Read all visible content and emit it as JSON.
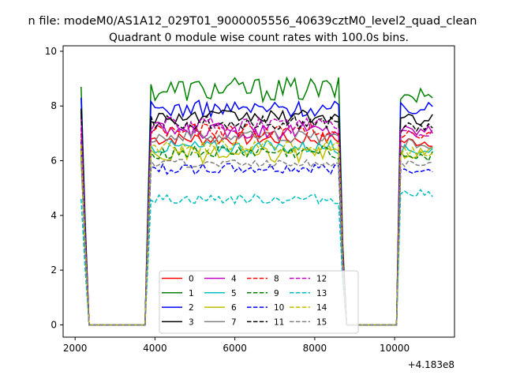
{
  "chart_data": {
    "type": "line",
    "suptitle": "n file: modeM0/AS1A12_029T01_9000005556_40639cztM0_level2_quad_clean",
    "title": "Quadrant 0 module wise count rates with 100.0s bins.",
    "xlabel": "",
    "ylabel": "",
    "xlim": [
      1700,
      11500
    ],
    "ylim": [
      -0.45,
      10.2
    ],
    "xticks": [
      2000,
      4000,
      6000,
      8000,
      10000
    ],
    "xtick_labels": [
      "2000",
      "4000",
      "6000",
      "8000",
      "10000"
    ],
    "yticks": [
      0,
      2,
      4,
      6,
      8,
      10
    ],
    "ytick_labels": [
      "0",
      "2",
      "4",
      "6",
      "8",
      "10"
    ],
    "offset_text": "+4.183e8",
    "segments": [
      [
        2150,
        2350
      ],
      [
        2350,
        3750
      ],
      [
        3750,
        8700
      ],
      [
        8700,
        10050
      ],
      [
        10050,
        11000
      ]
    ],
    "series": [
      {
        "name": "0",
        "color": "#ff0000",
        "dash": "solid",
        "start": 6.6,
        "level": 6.8,
        "noise": 0.25,
        "tail": 6.7
      },
      {
        "name": "1",
        "color": "#008000",
        "dash": "solid",
        "start": 8.7,
        "level": 8.6,
        "noise": 0.45,
        "tail": 8.4
      },
      {
        "name": "2",
        "color": "#0000ff",
        "dash": "solid",
        "start": 8.3,
        "level": 7.9,
        "noise": 0.3,
        "tail": 7.9
      },
      {
        "name": "3",
        "color": "#000000",
        "dash": "solid",
        "start": 7.8,
        "level": 7.6,
        "noise": 0.25,
        "tail": 7.5
      },
      {
        "name": "4",
        "color": "#bf00bf",
        "dash": "solid",
        "start": 7.6,
        "level": 7.1,
        "noise": 0.3,
        "tail": 7.1
      },
      {
        "name": "5",
        "color": "#00bfbf",
        "dash": "solid",
        "start": 6.2,
        "level": 6.5,
        "noise": 0.25,
        "tail": 6.4
      },
      {
        "name": "6",
        "color": "#bfbf00",
        "dash": "solid",
        "start": 6.3,
        "level": 6.2,
        "noise": 0.3,
        "tail": 6.3
      },
      {
        "name": "7",
        "color": "#808080",
        "dash": "solid",
        "start": 6.8,
        "level": 6.9,
        "noise": 0.25,
        "tail": 6.6
      },
      {
        "name": "8",
        "color": "#ff0000",
        "dash": "dashed",
        "start": 7.0,
        "level": 7.1,
        "noise": 0.25,
        "tail": 7.0
      },
      {
        "name": "9",
        "color": "#008000",
        "dash": "dashed",
        "start": 6.4,
        "level": 6.3,
        "noise": 0.25,
        "tail": 6.2
      },
      {
        "name": "10",
        "color": "#0000ff",
        "dash": "dashed",
        "start": 6.7,
        "level": 5.7,
        "noise": 0.2,
        "tail": 5.7
      },
      {
        "name": "11",
        "color": "#000000",
        "dash": "dashed",
        "start": 7.9,
        "level": 7.4,
        "noise": 0.25,
        "tail": 7.2
      },
      {
        "name": "12",
        "color": "#bf00bf",
        "dash": "dashed",
        "start": 7.2,
        "level": 7.3,
        "noise": 0.3,
        "tail": 7.0
      },
      {
        "name": "13",
        "color": "#00bfbf",
        "dash": "dashed",
        "start": 4.6,
        "level": 4.6,
        "noise": 0.18,
        "tail": 4.8
      },
      {
        "name": "14",
        "color": "#bfbf00",
        "dash": "dashed",
        "start": 6.6,
        "level": 6.5,
        "noise": 0.25,
        "tail": 6.3
      },
      {
        "name": "15",
        "color": "#808080",
        "dash": "dashed",
        "start": 6.0,
        "level": 5.9,
        "noise": 0.15,
        "tail": 5.9
      }
    ],
    "legend": {
      "placement": "lower-center",
      "ncol": 4
    }
  }
}
